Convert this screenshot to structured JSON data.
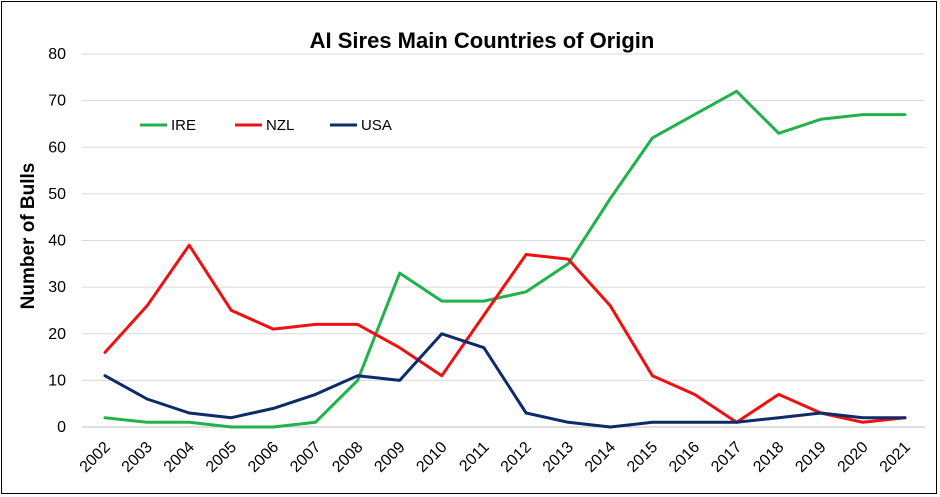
{
  "chart_data": {
    "type": "line",
    "title": "AI Sires Main Countries of Origin",
    "xlabel": "",
    "ylabel": "Number of Bulls",
    "ylim": [
      0,
      80
    ],
    "yticks": [
      0,
      10,
      20,
      30,
      40,
      50,
      60,
      70,
      80
    ],
    "grid": true,
    "legend_position": "top-left",
    "categories": [
      "2002",
      "2003",
      "2004",
      "2005",
      "2006",
      "2007",
      "2008",
      "2009",
      "2010",
      "2011",
      "2012",
      "2013",
      "2014",
      "2015",
      "2016",
      "2017",
      "2018",
      "2019",
      "2020",
      "2021"
    ],
    "series": [
      {
        "name": "IRE",
        "color": "#22b24c",
        "values": [
          2,
          1,
          1,
          0,
          0,
          1,
          10,
          33,
          27,
          27,
          29,
          35,
          49,
          62,
          67,
          72,
          63,
          66,
          67,
          67
        ]
      },
      {
        "name": "NZL",
        "color": "#ee1111",
        "values": [
          16,
          26,
          39,
          25,
          21,
          22,
          22,
          17,
          11,
          24,
          37,
          36,
          26,
          11,
          7,
          1,
          7,
          3,
          1,
          2
        ]
      },
      {
        "name": "USA",
        "color": "#0d2a6b",
        "values": [
          11,
          6,
          3,
          2,
          4,
          7,
          11,
          10,
          20,
          17,
          3,
          1,
          0,
          1,
          1,
          1,
          2,
          3,
          2,
          2
        ]
      }
    ]
  }
}
